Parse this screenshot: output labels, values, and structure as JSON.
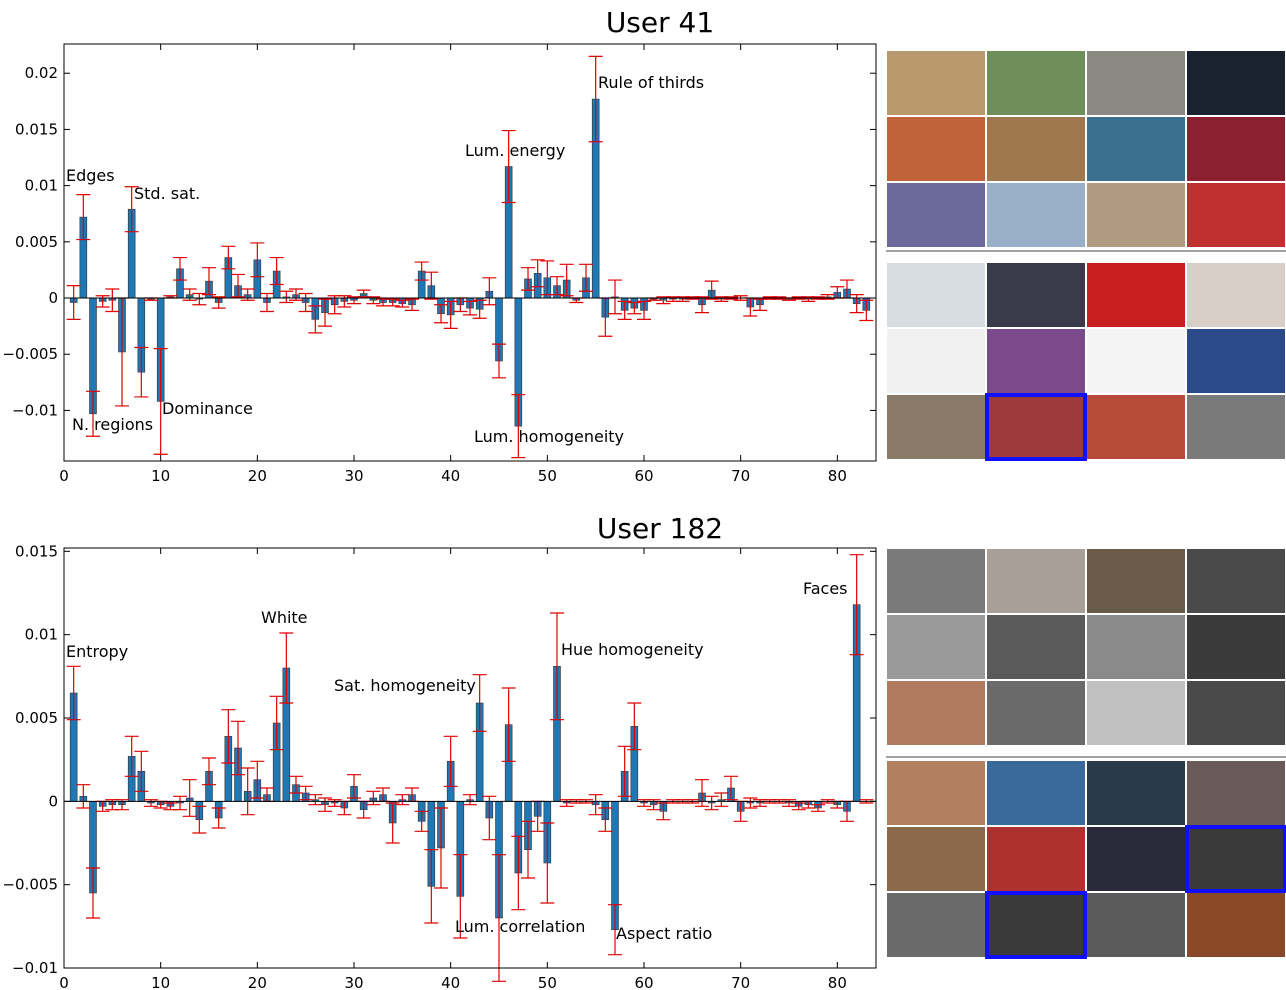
{
  "chart_data": [
    {
      "type": "bar",
      "title": "User 41",
      "color": "#1f77b4",
      "error_color": "#e00000",
      "x": [
        1,
        2,
        3,
        4,
        5,
        6,
        7,
        8,
        9,
        10,
        11,
        12,
        13,
        14,
        15,
        16,
        17,
        18,
        19,
        20,
        21,
        22,
        23,
        24,
        25,
        26,
        27,
        28,
        29,
        30,
        31,
        32,
        33,
        34,
        35,
        36,
        37,
        38,
        39,
        40,
        41,
        42,
        43,
        44,
        45,
        46,
        47,
        48,
        49,
        50,
        51,
        52,
        53,
        54,
        55,
        56,
        57,
        58,
        59,
        60,
        61,
        62,
        63,
        64,
        65,
        66,
        67,
        68,
        69,
        70,
        71,
        72,
        73,
        74,
        75,
        76,
        77,
        78,
        79,
        80,
        81,
        82,
        83
      ],
      "values": [
        -0.0004,
        0.0072,
        -0.0103,
        -0.0003,
        -0.0002,
        -0.0048,
        0.0079,
        -0.0066,
        -0.0001,
        -0.0092,
        0.0001,
        0.0026,
        0.0003,
        -0.0001,
        0.0015,
        -0.0004,
        0.0036,
        0.0011,
        0.0003,
        0.0034,
        -0.0004,
        0.0024,
        0.0001,
        0.0003,
        -0.0004,
        -0.0019,
        -0.0013,
        -0.0006,
        -0.0003,
        -0.0002,
        0.0004,
        -0.0002,
        -0.0004,
        -0.0004,
        -0.0005,
        -0.0006,
        0.0024,
        0.0011,
        -0.0014,
        -0.0015,
        -0.0006,
        -0.0009,
        -0.001,
        0.0006,
        -0.0056,
        0.0117,
        -0.0114,
        0.0017,
        0.0022,
        0.0018,
        0.0011,
        0.0016,
        -0.0002,
        0.0018,
        0.0177,
        -0.0017,
        0.0001,
        -0.0011,
        -0.0009,
        -0.0011,
        -0.0001,
        -0.0002,
        -0.0001,
        -0.0001,
        0,
        -0.0006,
        0.0007,
        -0.0001,
        0,
        0,
        -0.0008,
        -0.0006,
        0,
        0,
        -0.0001,
        0,
        -0.0001,
        0,
        0.0001,
        0.0005,
        0.0008,
        -0.0005,
        -0.0011
      ],
      "errors": [
        0.0015,
        0.002,
        0.002,
        0.0005,
        0.001,
        0.0048,
        0.002,
        0.0022,
        0.0001,
        0.0047,
        0.0001,
        0.001,
        0.0005,
        0.0005,
        0.0012,
        0.0005,
        0.001,
        0.001,
        0.0005,
        0.0015,
        0.0008,
        0.0012,
        0.0005,
        0.0005,
        0.0008,
        0.0012,
        0.0012,
        0.0008,
        0.0005,
        0.0003,
        0.0003,
        0.0003,
        0.0003,
        0.0003,
        0.0003,
        0.0005,
        0.0008,
        0.0012,
        0.0008,
        0.0012,
        0.0006,
        0.0006,
        0.0008,
        0.0012,
        0.0015,
        0.0032,
        0.0028,
        0.001,
        0.0012,
        0.0015,
        0.0008,
        0.0014,
        0.0002,
        0.0012,
        0.0038,
        0.0017,
        0.0015,
        0.0008,
        0.0005,
        0.0008,
        0.0001,
        0.0003,
        0.0002,
        0.0002,
        0.0001,
        0.0007,
        0.0008,
        0.0002,
        0.0001,
        0.0002,
        0.0008,
        0.0005,
        0.0001,
        0.0001,
        0.0001,
        0.0001,
        0.0002,
        0.0001,
        0.0002,
        0.0005,
        0.0008,
        0.0008,
        0.0009
      ],
      "xlim": [
        0,
        84
      ],
      "xticks": [
        0,
        10,
        20,
        30,
        40,
        50,
        60,
        70,
        80
      ],
      "ylim": [
        -0.0145,
        0.0226
      ],
      "yticks": [
        {
          "value": -0.01,
          "label": "−0.01"
        },
        {
          "value": -0.005,
          "label": "−0.005"
        },
        0,
        0.005,
        0.01,
        0.015,
        0.02
      ],
      "annotations": [
        "Edges",
        "Std. sat.",
        "N. regions",
        "Dominance",
        "Lum. energy",
        "Rule of thirds",
        "Lum. homogeneity"
      ]
    },
    {
      "type": "bar",
      "title": "User 182",
      "color": "#1f77b4",
      "error_color": "#e00000",
      "x": [
        1,
        2,
        3,
        4,
        5,
        6,
        7,
        8,
        9,
        10,
        11,
        12,
        13,
        14,
        15,
        16,
        17,
        18,
        19,
        20,
        21,
        22,
        23,
        24,
        25,
        26,
        27,
        28,
        29,
        30,
        31,
        32,
        33,
        34,
        35,
        36,
        37,
        38,
        39,
        40,
        41,
        42,
        43,
        44,
        45,
        46,
        47,
        48,
        49,
        50,
        51,
        52,
        53,
        54,
        55,
        56,
        57,
        58,
        59,
        60,
        61,
        62,
        63,
        64,
        65,
        66,
        67,
        68,
        69,
        70,
        71,
        72,
        73,
        74,
        75,
        76,
        77,
        78,
        79,
        80,
        81,
        82,
        83
      ],
      "values": [
        0.0065,
        0.0003,
        -0.0055,
        -0.0003,
        -0.0002,
        -0.0002,
        0.0027,
        0.0018,
        -0.0001,
        -0.0002,
        -0.0003,
        -0.0001,
        0.0002,
        -0.0011,
        0.0018,
        -0.001,
        0.0039,
        0.0032,
        0.0006,
        0.0013,
        0.0004,
        0.0047,
        0.008,
        0.001,
        0.0005,
        0.0001,
        -0.0002,
        -0.0001,
        -0.0004,
        0.0009,
        -0.0005,
        0.0002,
        0.0004,
        -0.0013,
        0.0001,
        0.0004,
        -0.0012,
        -0.0051,
        -0.0028,
        0.0024,
        -0.0057,
        0.0001,
        0.0059,
        -0.001,
        -0.007,
        0.0046,
        -0.0043,
        -0.0029,
        -0.0009,
        -0.0037,
        0.0081,
        -0.0001,
        0,
        0,
        -0.0002,
        -0.0011,
        -0.0077,
        0.0018,
        0.0045,
        -0.0001,
        -0.0002,
        -0.0006,
        0,
        0,
        0,
        0.0005,
        -0.0001,
        0.0001,
        0.0008,
        -0.0006,
        -0.0001,
        -0.0001,
        0,
        0,
        -0.0001,
        -0.0003,
        -0.0002,
        -0.0004,
        0,
        -0.0002,
        -0.0006,
        0.0118,
        0
      ],
      "errors": [
        0.0016,
        0.0007,
        0.0015,
        0.0003,
        0.0003,
        0.0003,
        0.0012,
        0.0012,
        0.0002,
        0.0002,
        0.0002,
        0.0004,
        0.0011,
        0.0008,
        0.0008,
        0.0006,
        0.0016,
        0.0016,
        0.0014,
        0.0011,
        0.0004,
        0.0016,
        0.0021,
        0.0005,
        0.0004,
        0.0003,
        0.0004,
        0.0002,
        0.0004,
        0.0007,
        0.0005,
        0.0004,
        0.0004,
        0.0012,
        0.0003,
        0.0004,
        0.0006,
        0.0022,
        0.0024,
        0.0015,
        0.0025,
        0.0003,
        0.0017,
        0.0013,
        0.0038,
        0.0022,
        0.0022,
        0.0017,
        0.0009,
        0.0024,
        0.0032,
        0.0002,
        0.0001,
        0.0001,
        0.0006,
        0.0007,
        0.0015,
        0.0015,
        0.0014,
        0.0002,
        0.0003,
        0.0005,
        0.0001,
        0.0001,
        0.0001,
        0.0008,
        0.0004,
        0.0004,
        0.0007,
        0.0006,
        0.0003,
        0.0002,
        0.0001,
        0.0001,
        0.0002,
        0.0002,
        0.0002,
        0.0002,
        0.0001,
        0.0002,
        0.0006,
        0.003,
        0.0001
      ],
      "xlim": [
        0,
        84
      ],
      "xticks": [
        0,
        10,
        20,
        30,
        40,
        50,
        60,
        70,
        80
      ],
      "ylim": [
        -0.01,
        0.0152
      ],
      "yticks": [
        {
          "value": -0.01,
          "label": "−0.01"
        },
        {
          "value": -0.005,
          "label": "−0.005"
        },
        0,
        0.005,
        0.01,
        0.015
      ],
      "annotations": [
        "Entropy",
        "White",
        "Sat. homogeneity",
        "Lum. correlation",
        "Hue homogeneity",
        "Aspect ratio",
        "Faces"
      ]
    }
  ]
}
